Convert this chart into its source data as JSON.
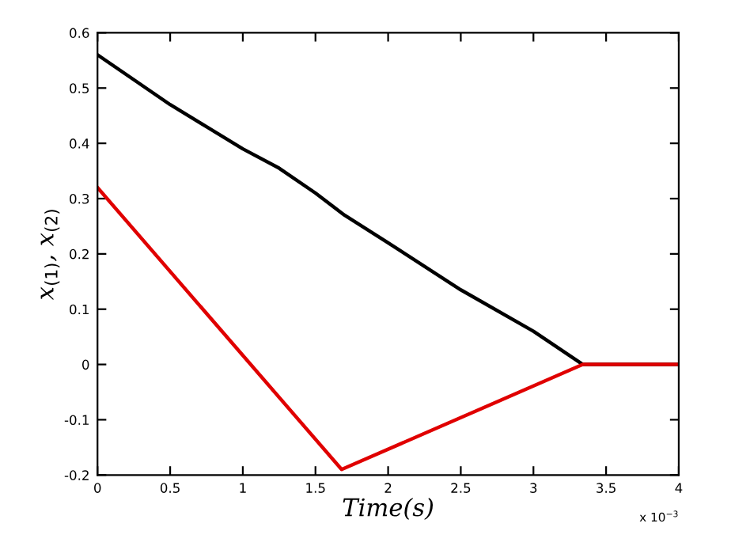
{
  "chart_data": {
    "type": "line",
    "xlabel": "Time(s)",
    "ylabel": "x$_{(1)}$, x$_{(2)}$",
    "annotations": [
      "x 10$^{−3}$"
    ],
    "series": [
      {
        "color": "#000000",
        "x": [
          0,
          0.25,
          0.5,
          0.75,
          1,
          1.25,
          1.5,
          1.7,
          2,
          2.5,
          3,
          3.34,
          4
        ],
        "values": [
          0.56,
          0.515,
          0.47,
          0.43,
          0.39,
          0.355,
          0.31,
          0.27,
          0.22,
          0.135,
          0.06,
          0,
          0
        ]
      },
      {
        "color": "#e00000",
        "x": [
          0,
          1.68,
          3.34,
          4
        ],
        "values": [
          0.32,
          -0.19,
          0,
          0
        ]
      }
    ],
    "xlim": [
      0,
      4
    ],
    "ylim": [
      -0.2,
      0.6
    ],
    "xticks": [
      0,
      0.5,
      1,
      1.5,
      2,
      2.5,
      3,
      3.5,
      4
    ],
    "yticks": [
      -0.2,
      -0.1,
      0,
      0.1,
      0.2,
      0.3,
      0.4,
      0.5,
      0.6
    ],
    "grid": false,
    "legend": false,
    "marker": "none",
    "line_style": "solid"
  }
}
